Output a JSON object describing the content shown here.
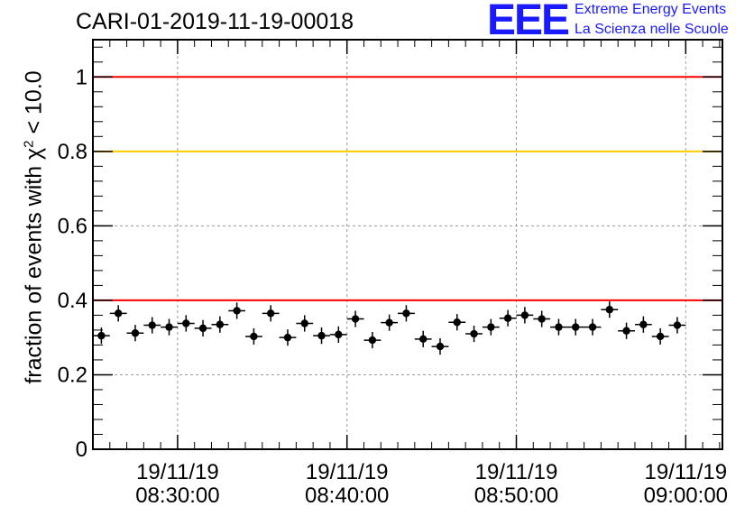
{
  "header": {
    "title": "CARI-01-2019-11-19-00018",
    "logo_letters": "EEE",
    "logo_line1": "Extreme Energy Events",
    "logo_line2": "La Scienza nelle Scuole"
  },
  "colors": {
    "logo_blue": "#1a1aff",
    "red_line": "#ff0000",
    "yellow_line": "#ffcc00",
    "marker": "#000000",
    "grid": "#9a9a9a"
  },
  "chart_data": {
    "type": "scatter",
    "title": "CARI-01-2019-11-19-00018",
    "ylabel_prefix": "fraction of events with χ",
    "ylabel_sup": "2",
    "ylabel_suffix": " < 10.0",
    "xlabel": "",
    "ylim": [
      0,
      1.1
    ],
    "xlim": [
      "2019-11-19 08:25:00",
      "2019-11-19 09:02:10"
    ],
    "grid": true,
    "yticks": [
      {
        "value": 0,
        "label": "0"
      },
      {
        "value": 0.2,
        "label": "0.2"
      },
      {
        "value": 0.4,
        "label": "0.4"
      },
      {
        "value": 0.6,
        "label": "0.6"
      },
      {
        "value": 0.8,
        "label": "0.8"
      },
      {
        "value": 1,
        "label": "1"
      }
    ],
    "xticks": [
      {
        "time": "2019-11-19 08:30:00",
        "date_label": "19/11/19",
        "time_label": "08:30:00"
      },
      {
        "time": "2019-11-19 08:40:00",
        "date_label": "19/11/19",
        "time_label": "08:40:00"
      },
      {
        "time": "2019-11-19 08:50:00",
        "date_label": "19/11/19",
        "time_label": "08:50:00"
      },
      {
        "time": "2019-11-19 09:00:00",
        "date_label": "19/11/19",
        "time_label": "09:00:00"
      }
    ],
    "reference_lines": [
      {
        "y": 1.0,
        "color": "#ff0000"
      },
      {
        "y": 0.8,
        "color": "#ffcc00"
      },
      {
        "y": 0.4,
        "color": "#ff0000"
      }
    ],
    "bin_width_seconds": 60,
    "points": [
      {
        "x": "2019-11-19 08:25:30",
        "y": 0.305,
        "err": 0.022
      },
      {
        "x": "2019-11-19 08:26:30",
        "y": 0.365,
        "err": 0.022
      },
      {
        "x": "2019-11-19 08:27:30",
        "y": 0.312,
        "err": 0.022
      },
      {
        "x": "2019-11-19 08:28:30",
        "y": 0.333,
        "err": 0.022
      },
      {
        "x": "2019-11-19 08:29:30",
        "y": 0.328,
        "err": 0.022
      },
      {
        "x": "2019-11-19 08:30:30",
        "y": 0.338,
        "err": 0.022
      },
      {
        "x": "2019-11-19 08:31:30",
        "y": 0.325,
        "err": 0.022
      },
      {
        "x": "2019-11-19 08:32:30",
        "y": 0.335,
        "err": 0.022
      },
      {
        "x": "2019-11-19 08:33:30",
        "y": 0.372,
        "err": 0.022
      },
      {
        "x": "2019-11-19 08:34:30",
        "y": 0.303,
        "err": 0.022
      },
      {
        "x": "2019-11-19 08:35:30",
        "y": 0.365,
        "err": 0.022
      },
      {
        "x": "2019-11-19 08:36:30",
        "y": 0.3,
        "err": 0.022
      },
      {
        "x": "2019-11-19 08:37:30",
        "y": 0.338,
        "err": 0.022
      },
      {
        "x": "2019-11-19 08:38:30",
        "y": 0.305,
        "err": 0.022
      },
      {
        "x": "2019-11-19 08:39:30",
        "y": 0.308,
        "err": 0.022
      },
      {
        "x": "2019-11-19 08:40:30",
        "y": 0.35,
        "err": 0.022
      },
      {
        "x": "2019-11-19 08:41:30",
        "y": 0.293,
        "err": 0.022
      },
      {
        "x": "2019-11-19 08:42:30",
        "y": 0.34,
        "err": 0.022
      },
      {
        "x": "2019-11-19 08:43:30",
        "y": 0.365,
        "err": 0.022
      },
      {
        "x": "2019-11-19 08:44:30",
        "y": 0.296,
        "err": 0.022
      },
      {
        "x": "2019-11-19 08:45:30",
        "y": 0.276,
        "err": 0.022
      },
      {
        "x": "2019-11-19 08:46:30",
        "y": 0.341,
        "err": 0.022
      },
      {
        "x": "2019-11-19 08:47:30",
        "y": 0.31,
        "err": 0.022
      },
      {
        "x": "2019-11-19 08:48:30",
        "y": 0.328,
        "err": 0.022
      },
      {
        "x": "2019-11-19 08:49:30",
        "y": 0.352,
        "err": 0.022
      },
      {
        "x": "2019-11-19 08:50:30",
        "y": 0.36,
        "err": 0.022
      },
      {
        "x": "2019-11-19 08:51:30",
        "y": 0.35,
        "err": 0.022
      },
      {
        "x": "2019-11-19 08:52:30",
        "y": 0.328,
        "err": 0.022
      },
      {
        "x": "2019-11-19 08:53:30",
        "y": 0.328,
        "err": 0.022
      },
      {
        "x": "2019-11-19 08:54:30",
        "y": 0.328,
        "err": 0.022
      },
      {
        "x": "2019-11-19 08:55:30",
        "y": 0.375,
        "err": 0.022
      },
      {
        "x": "2019-11-19 08:56:30",
        "y": 0.318,
        "err": 0.022
      },
      {
        "x": "2019-11-19 08:57:30",
        "y": 0.335,
        "err": 0.022
      },
      {
        "x": "2019-11-19 08:58:30",
        "y": 0.303,
        "err": 0.022
      },
      {
        "x": "2019-11-19 08:59:30",
        "y": 0.333,
        "err": 0.022
      }
    ]
  }
}
